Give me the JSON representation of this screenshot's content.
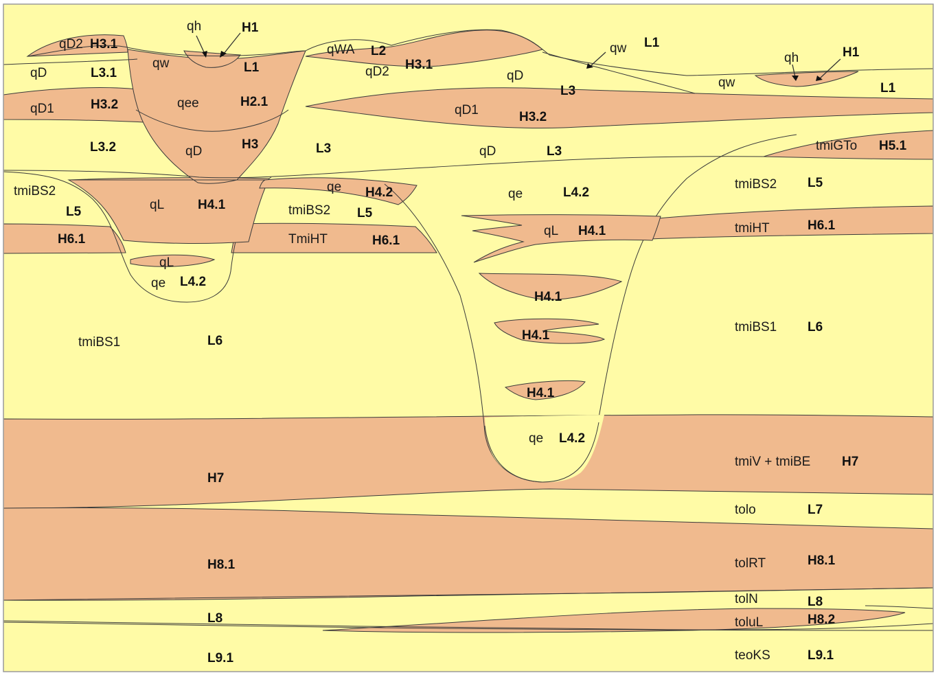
{
  "colors": {
    "aquifer": "#FFFBA6",
    "aquitard": "#F0BA8E",
    "frame": "#9a9a9a",
    "line": "#3a3a3a"
  },
  "labels": {
    "qD2_top": "qD2",
    "H3_1_top": "H3.1",
    "qh_a": "qh",
    "H1_a": "H1",
    "qD_tl": "qD",
    "L3_1": "L3.1",
    "qw_a": "qw",
    "L1_a": "L1",
    "qD1_l": "qD1",
    "H3_2_l": "H3.2",
    "qee": "qee",
    "H2_1": "H2.1",
    "L3_2": "L3.2",
    "qD_ch": "qD",
    "H3_ch": "H3",
    "L3_m": "L3",
    "qWA": "qWA",
    "L2": "L2",
    "qD2_m": "qD2",
    "H3_1_m": "H3.1",
    "qD_m": "qD",
    "L3_mr": "L3",
    "qw_b": "qw",
    "L1_b": "L1",
    "qD1_m": "qD1",
    "H3_2_m": "H3.2",
    "qD_low": "qD",
    "L3_low": "L3",
    "qh_b": "qh",
    "H1_b": "H1",
    "qw_c": "qw",
    "L1_c": "L1",
    "tmiGTo": "tmiGTo",
    "H5_1": "H5.1",
    "tmiBS2_l": "tmiBS2",
    "L5_l": "L5",
    "qL_l": "qL",
    "H4_1_l": "H4.1",
    "qe_s": "qe",
    "H4_2_s": "H4.2",
    "tmiBS2_m": "tmiBS2",
    "L5_m": "L5",
    "qe_c": "qe",
    "L4_2_c": "L4.2",
    "tmiBS2_r": "tmiBS2",
    "L5_r": "L5",
    "H6_1_l": "H6.1",
    "TmiHT": "TmiHT",
    "H6_1_m": "H6.1",
    "qL_c": "qL",
    "H4_1_c": "H4.1",
    "tmiHT_r": "tmiHT",
    "H6_1_r": "H6.1",
    "qL_lens": "qL",
    "qe_l": "qe",
    "L4_2_l": "L4.2",
    "H4_1_a": "H4.1",
    "H4_1_b": "H4.1",
    "H4_1_d": "H4.1",
    "tmiBS1_l": "tmiBS1",
    "L6_l": "L6",
    "tmiBS1_r": "tmiBS1",
    "L6_r": "L6",
    "qe_b": "qe",
    "L4_2_b": "L4.2",
    "tmiV": "tmiV + tmiBE",
    "H7_r": "H7",
    "H7_l": "H7",
    "tolo": "tolo",
    "L7": "L7",
    "H8_1_l": "H8.1",
    "tolRT": "tolRT",
    "H8_1_r": "H8.1",
    "tolN": "tolN",
    "L8_r": "L8",
    "L8_l": "L8",
    "toluL": "toluL",
    "H8_2": "H8.2",
    "L9_1_l": "L9.1",
    "teoKS": "teoKS",
    "L9_1_r": "L9.1"
  }
}
